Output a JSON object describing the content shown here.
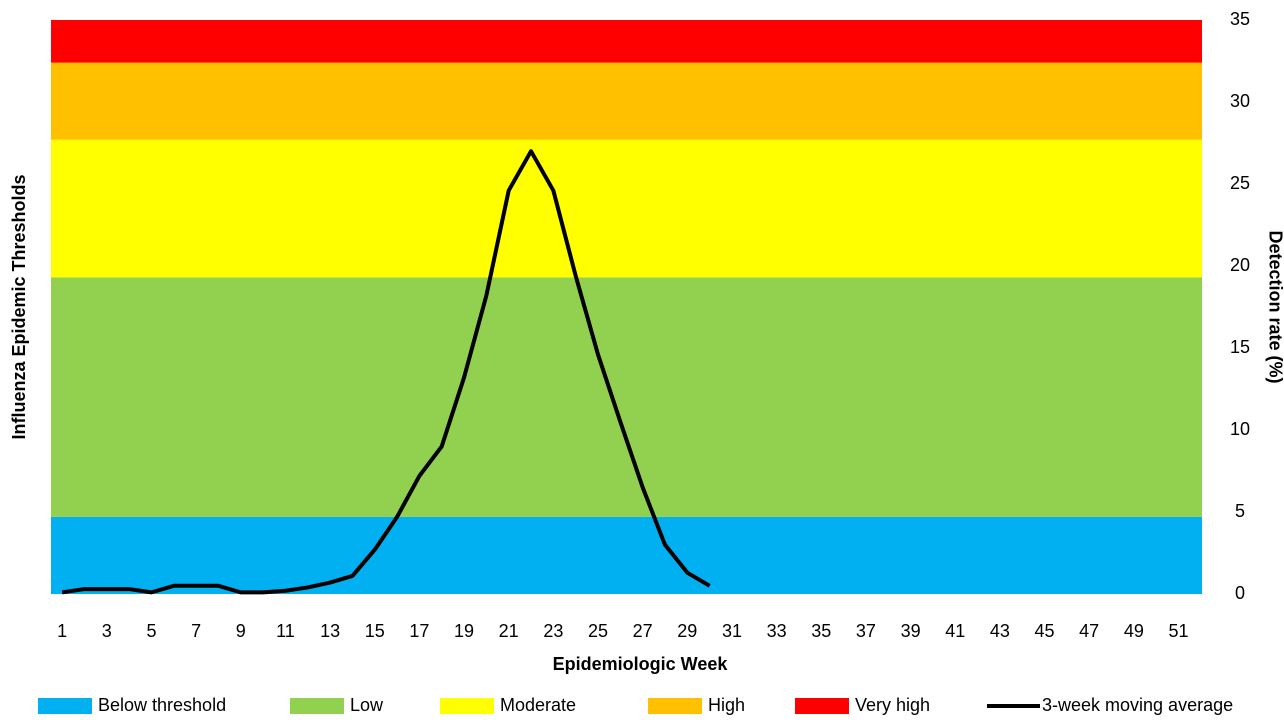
{
  "chart_data": {
    "type": "line",
    "x_label": "Epidemiologic Week",
    "y_label": "Influenza Epidemic Thresholds",
    "y2_label": "Detection rate (%)",
    "categories": [
      1,
      null,
      3,
      null,
      5,
      null,
      7,
      null,
      9,
      null,
      11,
      null,
      13,
      null,
      15,
      null,
      17,
      null,
      19,
      null,
      21,
      null,
      23,
      null,
      25,
      null,
      27,
      null,
      29,
      null,
      31,
      null,
      33,
      null,
      35,
      null,
      37,
      null,
      39,
      null,
      41,
      null,
      43,
      null,
      45,
      null,
      47,
      null,
      49,
      null,
      51,
      null
    ],
    "bands": [
      {
        "name": "Below threshold",
        "color": "#00b0f0",
        "value": 4.7
      },
      {
        "name": "Low",
        "color": "#92d050",
        "value": 14.6
      },
      {
        "name": "Moderate",
        "color": "#ffff00",
        "value": 8.4
      },
      {
        "name": "High",
        "color": "#ffc000",
        "value": 4.7
      },
      {
        "name": "Very high",
        "color": "#ff0000",
        "value": 2.6
      }
    ],
    "series": [
      {
        "name": "3-week moving average",
        "color": "#000000",
        "values": [
          0.1,
          0.3,
          0.3,
          0.3,
          0.1,
          0.5,
          0.5,
          0.5,
          0.1,
          0.1,
          0.2,
          0.4,
          0.7,
          1.1,
          2.7,
          4.7,
          7.2,
          9.0,
          13.2,
          18.2,
          24.6,
          27.0,
          24.6,
          19.4,
          14.6,
          10.5,
          6.5,
          3.0,
          1.3,
          0.5,
          null,
          null,
          null,
          null,
          null,
          null,
          null,
          null,
          null,
          null,
          null,
          null,
          null,
          null,
          null,
          null,
          null,
          null,
          null,
          null,
          null,
          null
        ]
      }
    ],
    "ylim": [
      0,
      35
    ],
    "yticks": [
      0,
      5,
      10,
      15,
      20,
      25,
      30,
      35
    ]
  }
}
